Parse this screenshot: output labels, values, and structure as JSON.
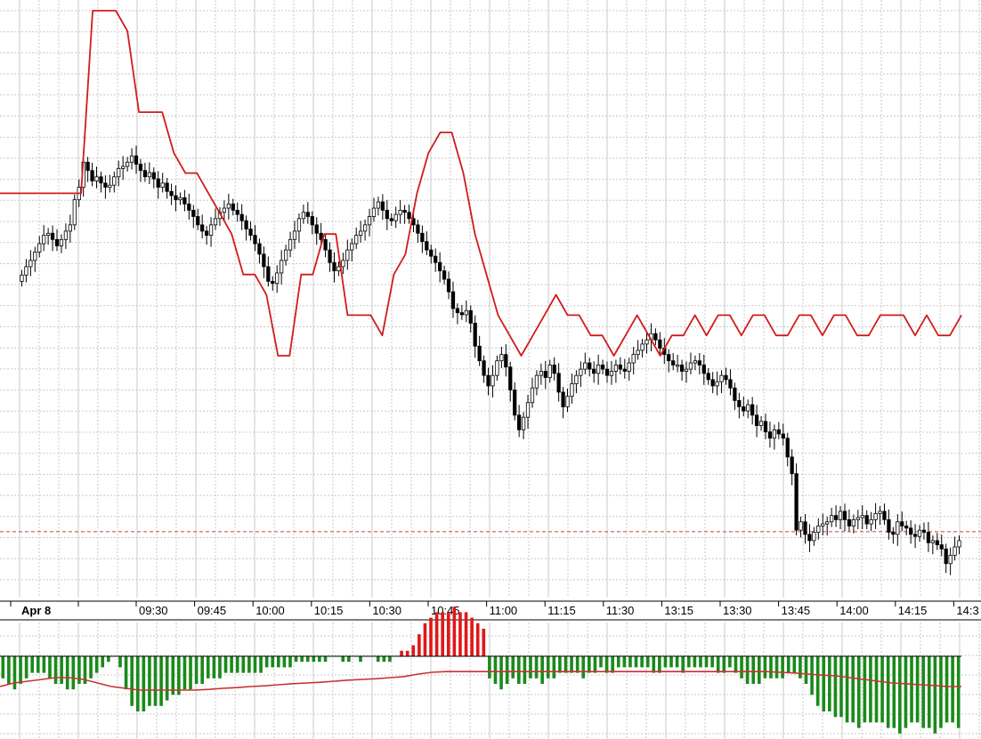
{
  "chart_data": [
    {
      "type": "candlestick",
      "panel": "price",
      "date_label": "Apr 8",
      "x_tick_labels": [
        "09:30",
        "09:45",
        "10:00",
        "10:15",
        "10:30",
        "10:45",
        "11:00",
        "11:15",
        "11:30",
        "13:15",
        "13:30",
        "13:45",
        "14:00",
        "14:15",
        "14:3"
      ],
      "grid": true,
      "colors": {
        "up_body": "#ffffff",
        "down_body": "#000000",
        "wick": "#000000",
        "grid": "#c8c8c8"
      },
      "candle_close_path": [
        2.2,
        2.6,
        2.9,
        3.3,
        3.7,
        4.1,
        4.2,
        3.9,
        3.6,
        3.9,
        4.3,
        4.6,
        5.8,
        6.4,
        7.6,
        7.2,
        6.7,
        6.9,
        6.6,
        6.4,
        6.5,
        6.9,
        7.3,
        7.4,
        7.6,
        7.9,
        7.5,
        7.2,
        6.9,
        7.1,
        6.8,
        6.4,
        6.6,
        6.2,
        6.0,
        5.8,
        5.9,
        5.6,
        5.3,
        5.0,
        4.6,
        4.3,
        4.1,
        4.6,
        4.9,
        5.2,
        5.4,
        5.6,
        5.3,
        5.1,
        4.8,
        4.4,
        4.1,
        3.7,
        3.2,
        2.6,
        1.9,
        1.8,
        2.3,
        2.9,
        3.4,
        3.9,
        4.3,
        4.9,
        5.2,
        5.0,
        4.6,
        4.2,
        3.9,
        3.4,
        2.8,
        2.4,
        2.6,
        2.9,
        3.4,
        3.7,
        4.1,
        4.3,
        4.6,
        5.0,
        5.4,
        5.7,
        5.3,
        4.9,
        4.8,
        5.1,
        5.3,
        5.2,
        4.9,
        4.6,
        4.2,
        3.8,
        3.4,
        3.1,
        2.8,
        2.4,
        2.0,
        1.4,
        0.6,
        0.4,
        0.3,
        0.5,
        -0.1,
        -1.2,
        -1.9,
        -2.6,
        -3.1,
        -2.6,
        -1.9,
        -1.6,
        -2.2,
        -3.3,
        -4.5,
        -5.2,
        -4.6,
        -3.9,
        -3.2,
        -2.6,
        -2.4,
        -2.7,
        -2.1,
        -2.5,
        -3.4,
        -4.1,
        -3.6,
        -3.0,
        -2.6,
        -2.3,
        -2.0,
        -2.3,
        -2.5,
        -2.1,
        -2.3,
        -2.6,
        -2.4,
        -2.1,
        -2.3,
        -2.4,
        -2.0,
        -1.6,
        -1.4,
        -1.1,
        -0.9,
        -0.6,
        -0.9,
        -1.3,
        -1.6,
        -1.9,
        -2.1,
        -2.1,
        -2.4,
        -2.3,
        -2.0,
        -1.9,
        -2.1,
        -2.5,
        -2.8,
        -3.1,
        -2.9,
        -2.6,
        -2.8,
        -3.2,
        -3.8,
        -4.1,
        -4.3,
        -4.0,
        -4.5,
        -5.0,
        -4.8,
        -5.3,
        -5.6,
        -5.2,
        -5.4,
        -5.6,
        -6.5,
        -7.3,
        -10.0,
        -9.6,
        -10.2,
        -10.5,
        -10.1,
        -9.8,
        -9.7,
        -9.6,
        -9.3,
        -9.5,
        -9.1,
        -9.5,
        -9.8,
        -9.5,
        -9.4,
        -9.3,
        -9.7,
        -9.5,
        -9.2,
        -9.1,
        -9.5,
        -10.1,
        -10.2,
        -9.6,
        -9.8,
        -9.9,
        -10.2,
        -10.3,
        -10.0,
        -10.1,
        -10.6,
        -10.5,
        -10.7,
        -10.9,
        -11.6,
        -11.2,
        -10.8,
        -10.5
      ],
      "reference_line": {
        "style": "dashed",
        "color": "#d23c3c"
      }
    },
    {
      "type": "line",
      "panel": "price-overlay",
      "color": "#d01c1c",
      "note_values": "relative level path of the red overlay line",
      "values": [
        3,
        3,
        3,
        3,
        3,
        3,
        3,
        3,
        12,
        12,
        12,
        11,
        7,
        7,
        7,
        5,
        4,
        4,
        3,
        2,
        1,
        -1,
        -1,
        -2,
        -5,
        -5,
        -1,
        -1,
        1,
        1,
        -3,
        -3,
        -3,
        -4,
        -1,
        0,
        3,
        5,
        6,
        6,
        4,
        1,
        -1,
        -3,
        -4,
        -5,
        -4,
        -3,
        -2,
        -3,
        -3,
        -4,
        -4,
        -5,
        -4,
        -3,
        -4,
        -5,
        -4,
        -4,
        -3,
        -4,
        -3,
        -3,
        -4,
        -3,
        -3,
        -4,
        -4,
        -3,
        -3,
        -4,
        -3,
        -3,
        -4,
        -4,
        -3,
        -3,
        -3,
        -4,
        -3,
        -4,
        -4,
        -3
      ]
    },
    {
      "type": "bar",
      "panel": "oscillator",
      "colors": {
        "positive": "#e01818",
        "negative": "#1a8a1a",
        "signal": "#c83232",
        "zero": "#000000"
      },
      "histogram": [
        -0.4,
        -0.5,
        -0.6,
        -0.5,
        -0.4,
        -0.3,
        -0.3,
        -0.3,
        -0.4,
        -0.5,
        -0.5,
        -0.6,
        -0.6,
        -0.5,
        -0.5,
        -0.4,
        -0.3,
        -0.2,
        -0.1,
        0.0,
        -0.2,
        -0.6,
        -0.9,
        -1.0,
        -1.0,
        -0.9,
        -0.9,
        -0.9,
        -0.8,
        -0.7,
        -0.7,
        -0.6,
        -0.6,
        -0.5,
        -0.5,
        -0.4,
        -0.4,
        -0.4,
        -0.3,
        -0.3,
        -0.3,
        -0.3,
        -0.3,
        -0.3,
        -0.3,
        -0.2,
        -0.2,
        -0.2,
        -0.2,
        -0.2,
        -0.1,
        -0.1,
        -0.1,
        -0.1,
        -0.1,
        -0.1,
        0.0,
        0.0,
        -0.1,
        -0.1,
        0.0,
        -0.1,
        0.0,
        0.0,
        -0.1,
        -0.1,
        -0.1,
        0.0,
        0.1,
        0.1,
        0.2,
        0.4,
        0.6,
        0.7,
        0.8,
        0.8,
        0.8,
        0.9,
        0.8,
        0.8,
        0.7,
        0.6,
        0.5,
        -0.4,
        -0.5,
        -0.6,
        -0.5,
        -0.4,
        -0.5,
        -0.5,
        -0.4,
        -0.4,
        -0.5,
        -0.4,
        -0.4,
        -0.3,
        -0.3,
        -0.3,
        -0.3,
        -0.4,
        -0.3,
        -0.3,
        -0.2,
        -0.3,
        -0.3,
        -0.2,
        -0.2,
        -0.2,
        -0.2,
        -0.2,
        -0.2,
        -0.3,
        -0.3,
        -0.2,
        -0.2,
        -0.2,
        -0.3,
        -0.2,
        -0.2,
        -0.2,
        -0.2,
        -0.2,
        -0.3,
        -0.3,
        -0.2,
        -0.3,
        -0.4,
        -0.5,
        -0.5,
        -0.5,
        -0.4,
        -0.4,
        -0.4,
        -0.4,
        -0.3,
        -0.3,
        -0.4,
        -0.5,
        -0.7,
        -0.9,
        -1.0,
        -1.0,
        -1.1,
        -1.1,
        -1.2,
        -1.2,
        -1.3,
        -1.2,
        -1.2,
        -1.2,
        -1.2,
        -1.3,
        -1.3,
        -1.4,
        -1.3,
        -1.2,
        -1.2,
        -1.3,
        -1.3,
        -1.4,
        -1.3,
        -1.2,
        -1.2,
        -1.3
      ],
      "signal_line": [
        -0.3,
        -0.2,
        -0.15,
        -0.1,
        -0.05,
        -0.05,
        -0.1,
        -0.2,
        -0.3,
        -0.35,
        -0.4,
        -0.4,
        -0.4,
        -0.4,
        -0.4,
        -0.38,
        -0.35,
        -0.33,
        -0.3,
        -0.28,
        -0.25,
        -0.22,
        -0.2,
        -0.18,
        -0.15,
        -0.12,
        -0.1,
        -0.08,
        -0.05,
        -0.02,
        0.05,
        0.1,
        0.12,
        0.12,
        0.12,
        0.12,
        0.12,
        0.12,
        0.12,
        0.12,
        0.12,
        0.12,
        0.12,
        0.12,
        0.12,
        0.12,
        0.12,
        0.12,
        0.12,
        0.12,
        0.12,
        0.12,
        0.12,
        0.12,
        0.12,
        0.12,
        0.1,
        0.08,
        0.05,
        0.02,
        0.0,
        -0.05,
        -0.1,
        -0.15,
        -0.2,
        -0.22,
        -0.25,
        -0.27,
        -0.3,
        -0.3
      ]
    }
  ]
}
